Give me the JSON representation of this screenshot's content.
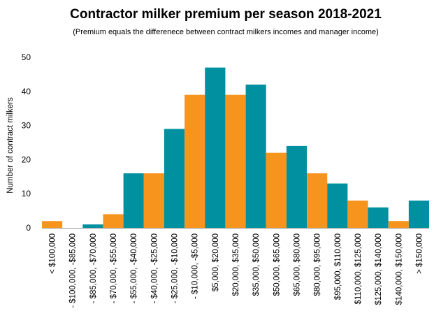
{
  "colors": {
    "orange": "#F7941D",
    "teal": "#0090A0"
  },
  "chart_data": {
    "type": "bar",
    "title": "Contractor milker premium per season 2018-2021",
    "subtitle": "(Premium equals the differenece between contract milkers incomes and manager income)",
    "ylabel": "Number of contract milkers",
    "xlabel": "",
    "ylim": [
      0,
      50
    ],
    "yticks": [
      0,
      10,
      20,
      30,
      40,
      50
    ],
    "grid": false,
    "legend": "none",
    "categories": [
      "< $100,000",
      "- $100,000, -$85,000",
      "- $85,000, -$70,000",
      "- $70,000, -$55,000",
      "- $55,000, -$40,000",
      "- $40,000, -$25,000",
      "- $25,000, -$10,000",
      "- $10,000, -$5,000",
      "$5,000, $20,000",
      "$20,000, $35,000",
      "$35,000, $50,000",
      "$50,000, $65,000",
      "$65,000, $80,000",
      "$80,000, $95,000",
      "$95,000, $110,000",
      "$110,000, $125,000",
      "$125,000, $140,000",
      "$140,000, $150,000",
      "> $150,000"
    ],
    "values": [
      2,
      0,
      1,
      4,
      16,
      16,
      29,
      39,
      47,
      39,
      42,
      22,
      24,
      16,
      13,
      8,
      6,
      2,
      8
    ],
    "bar_colors": [
      "orange",
      "teal",
      "teal",
      "orange",
      "teal",
      "orange",
      "teal",
      "orange",
      "teal",
      "orange",
      "teal",
      "orange",
      "teal",
      "orange",
      "teal",
      "orange",
      "teal",
      "orange",
      "teal"
    ]
  }
}
